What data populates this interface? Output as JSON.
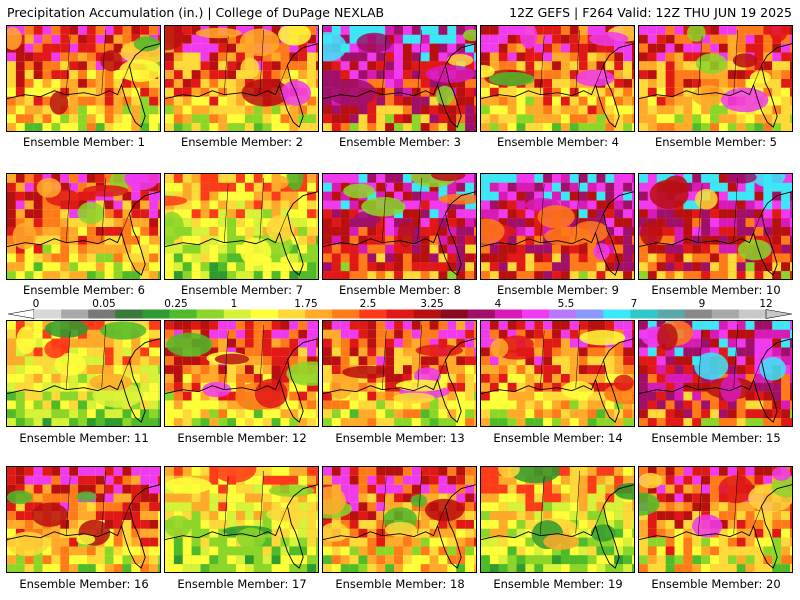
{
  "header": {
    "left": "Precipitation Accumulation (in.) | College of DuPage NEXLAB",
    "right": "12Z GEFS | F264 Valid: 12Z THU JUN 19 2025"
  },
  "panels": [
    {
      "label": "Ensemble Member: 1",
      "palette": "warm"
    },
    {
      "label": "Ensemble Member: 2",
      "palette": "warm"
    },
    {
      "label": "Ensemble Member: 3",
      "palette": "heavy"
    },
    {
      "label": "Ensemble Member: 4",
      "palette": "warm"
    },
    {
      "label": "Ensemble Member: 5",
      "palette": "warm"
    },
    {
      "label": "Ensemble Member: 6",
      "palette": "warm"
    },
    {
      "label": "Ensemble Member: 7",
      "palette": "light"
    },
    {
      "label": "Ensemble Member: 8",
      "palette": "heavy"
    },
    {
      "label": "Ensemble Member: 9",
      "palette": "heavy"
    },
    {
      "label": "Ensemble Member: 10",
      "palette": "heavy"
    },
    {
      "label": "Ensemble Member: 11",
      "palette": "light"
    },
    {
      "label": "Ensemble Member: 12",
      "palette": "warm"
    },
    {
      "label": "Ensemble Member: 13",
      "palette": "warm"
    },
    {
      "label": "Ensemble Member: 14",
      "palette": "warm"
    },
    {
      "label": "Ensemble Member: 15",
      "palette": "heavy"
    },
    {
      "label": "Ensemble Member: 16",
      "palette": "warm"
    },
    {
      "label": "Ensemble Member: 17",
      "palette": "light"
    },
    {
      "label": "Ensemble Member: 18",
      "palette": "warm"
    },
    {
      "label": "Ensemble Member: 19",
      "palette": "light"
    },
    {
      "label": "Ensemble Member: 20",
      "palette": "warm"
    }
  ],
  "colorbar": {
    "labels": [
      "0",
      "0.05",
      "0.25",
      "1",
      "1.75",
      "2.5",
      "3.25",
      "4",
      "5.5",
      "7",
      "9",
      "12"
    ],
    "colors": [
      "#d8d8d8",
      "#a8a8a8",
      "#787878",
      "#3a7a3a",
      "#2f9a2f",
      "#4fba2a",
      "#8cd62a",
      "#d8f23a",
      "#ffff3a",
      "#ffd83a",
      "#ffaa2a",
      "#ff7a1a",
      "#ff3a1a",
      "#e01818",
      "#b80f10",
      "#8a0a20",
      "#a0106a",
      "#d81ab8",
      "#f03af0",
      "#b87af8",
      "#8a9af8",
      "#3ae8f8",
      "#30c8c8",
      "#5aa8a8",
      "#888888",
      "#a8a8a8",
      "#c8c8c8"
    ]
  }
}
